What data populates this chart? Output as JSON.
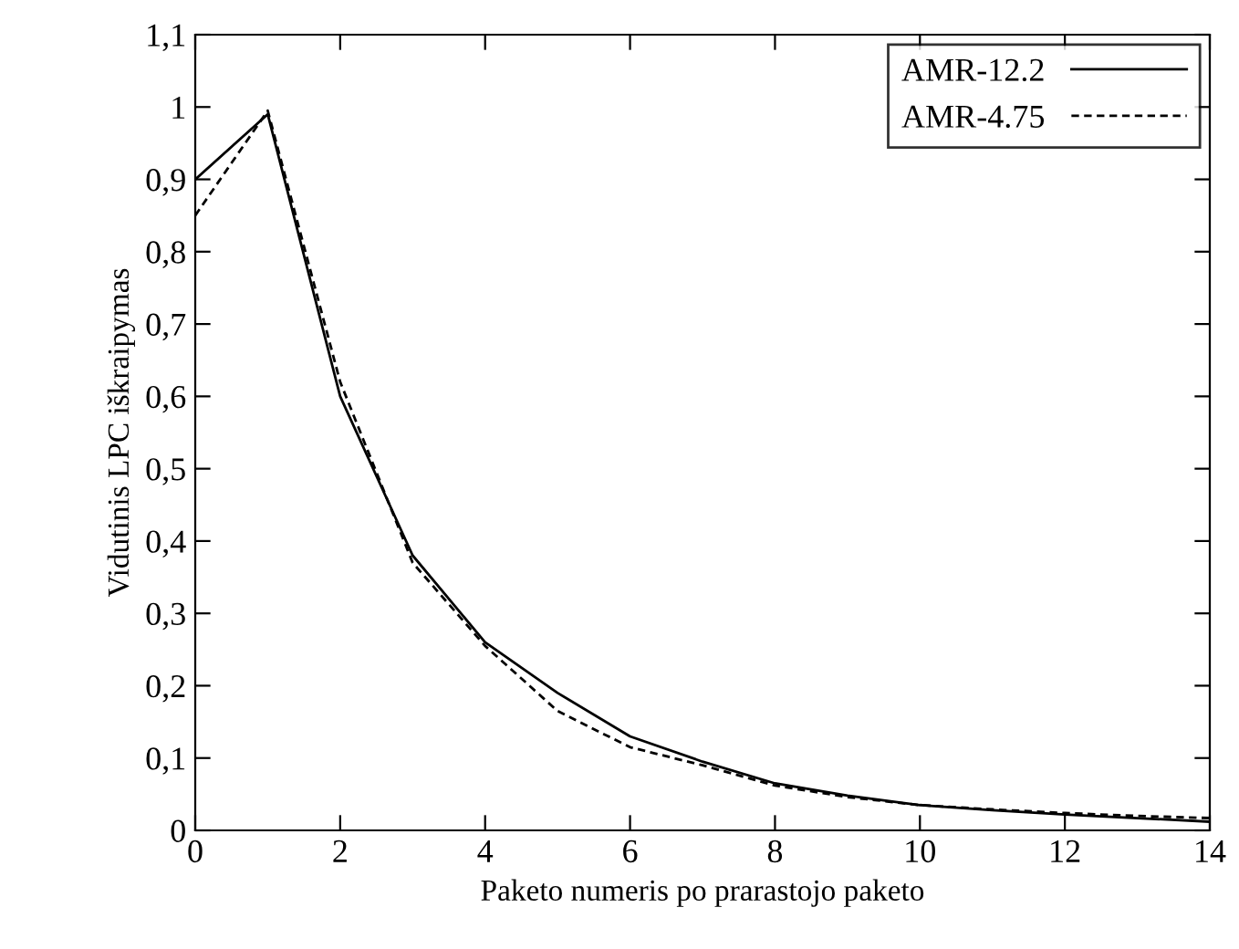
{
  "chart_data": {
    "type": "line",
    "xlabel": "Paketo numeris po prarastojo paketo",
    "ylabel": "Vidutinis LPC iškraipymas",
    "x": [
      0,
      1,
      2,
      3,
      4,
      5,
      6,
      7,
      8,
      9,
      10,
      11,
      12,
      13,
      14
    ],
    "series": [
      {
        "name": "AMR-12.2",
        "color": "#000000",
        "line_style": "solid",
        "values": [
          0.9,
          0.99,
          0.6,
          0.38,
          0.26,
          0.19,
          0.13,
          0.095,
          0.065,
          0.048,
          0.035,
          0.028,
          0.022,
          0.017,
          0.012
        ]
      },
      {
        "name": "AMR-4.75",
        "color": "#000000",
        "line_style": "dashed",
        "values": [
          0.85,
          0.995,
          0.62,
          0.37,
          0.255,
          0.165,
          0.115,
          0.09,
          0.062,
          0.046,
          0.035,
          0.029,
          0.024,
          0.02,
          0.017
        ]
      }
    ],
    "xlim": [
      0,
      14
    ],
    "xticks": [
      0,
      2,
      4,
      6,
      8,
      10,
      12,
      14
    ],
    "ylim": [
      0,
      1.1
    ],
    "yticks": [
      0,
      {
        "value": 0.1,
        "label": "0,1"
      },
      {
        "value": 0.2,
        "label": "0,2"
      },
      {
        "value": 0.3,
        "label": "0,3"
      },
      {
        "value": 0.4,
        "label": "0,4"
      },
      {
        "value": 0.5,
        "label": "0,5"
      },
      {
        "value": 0.6,
        "label": "0,6"
      },
      {
        "value": 0.7,
        "label": "0,7"
      },
      {
        "value": 0.8,
        "label": "0,8"
      },
      {
        "value": 0.9,
        "label": "0,9"
      },
      1,
      {
        "value": 1.1,
        "label": "1,1"
      }
    ],
    "legend": "top right",
    "grid": false,
    "marker": "none"
  }
}
